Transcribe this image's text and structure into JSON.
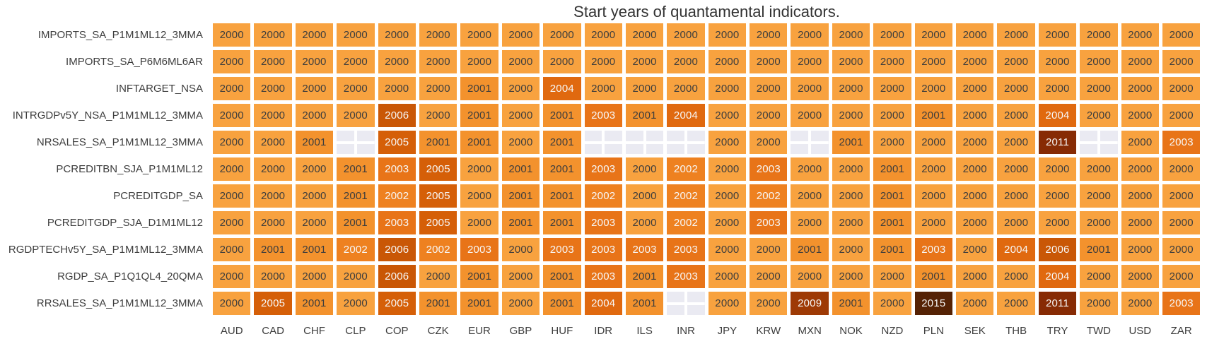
{
  "title": "Start years of quantamental indicators.",
  "chart_data": {
    "type": "heatmap",
    "title": "Start years of quantamental indicators.",
    "legend": "none",
    "grid_gap_color": "#ffffff",
    "missing_color": "#eaeaf2",
    "text_color_dark": "#3d3d3d",
    "text_color_light": "#f7f7f7",
    "text_light_threshold": 2002,
    "value_range": [
      2000,
      2015
    ],
    "colormap": {
      "2000": "#f8a23f",
      "2001": "#f3922d",
      "2002": "#ee8120",
      "2003": "#e87418",
      "2004": "#e0690f",
      "2005": "#d55f08",
      "2006": "#c95706",
      "2009": "#9e3a05",
      "2011": "#872b04",
      "2015": "#552205"
    },
    "columns": [
      "AUD",
      "CAD",
      "CHF",
      "CLP",
      "COP",
      "CZK",
      "EUR",
      "GBP",
      "HUF",
      "IDR",
      "ILS",
      "INR",
      "JPY",
      "KRW",
      "MXN",
      "NOK",
      "NZD",
      "PLN",
      "SEK",
      "THB",
      "TRY",
      "TWD",
      "USD",
      "ZAR"
    ],
    "rows": [
      {
        "label": "IMPORTS_SA_P1M1ML12_3MMA",
        "values": [
          2000,
          2000,
          2000,
          2000,
          2000,
          2000,
          2000,
          2000,
          2000,
          2000,
          2000,
          2000,
          2000,
          2000,
          2000,
          2000,
          2000,
          2000,
          2000,
          2000,
          2000,
          2000,
          2000,
          2000
        ]
      },
      {
        "label": "IMPORTS_SA_P6M6ML6AR",
        "values": [
          2000,
          2000,
          2000,
          2000,
          2000,
          2000,
          2000,
          2000,
          2000,
          2000,
          2000,
          2000,
          2000,
          2000,
          2000,
          2000,
          2000,
          2000,
          2000,
          2000,
          2000,
          2000,
          2000,
          2000
        ]
      },
      {
        "label": "INFTARGET_NSA",
        "values": [
          2000,
          2000,
          2000,
          2000,
          2000,
          2000,
          2001,
          2000,
          2004,
          2000,
          2000,
          2000,
          2000,
          2000,
          2000,
          2000,
          2000,
          2000,
          2000,
          2000,
          2000,
          2000,
          2000,
          2000
        ]
      },
      {
        "label": "INTRGDPv5Y_NSA_P1M1ML12_3MMA",
        "values": [
          2000,
          2000,
          2000,
          2000,
          2006,
          2000,
          2001,
          2000,
          2001,
          2003,
          2001,
          2004,
          2000,
          2000,
          2000,
          2000,
          2000,
          2001,
          2000,
          2000,
          2004,
          2000,
          2000,
          2000
        ]
      },
      {
        "label": "NRSALES_SA_P1M1ML12_3MMA",
        "values": [
          2000,
          2000,
          2001,
          null,
          2005,
          2001,
          2001,
          2000,
          2001,
          null,
          null,
          null,
          2000,
          2000,
          null,
          2001,
          2000,
          2000,
          2000,
          2000,
          2011,
          null,
          2000,
          2003
        ]
      },
      {
        "label": "PCREDITBN_SJA_P1M1ML12",
        "values": [
          2000,
          2000,
          2000,
          2001,
          2003,
          2005,
          2000,
          2001,
          2001,
          2003,
          2000,
          2002,
          2000,
          2003,
          2000,
          2000,
          2001,
          2000,
          2000,
          2000,
          2000,
          2000,
          2000,
          2000
        ]
      },
      {
        "label": "PCREDITGDP_SA",
        "values": [
          2000,
          2000,
          2000,
          2001,
          2002,
          2005,
          2000,
          2001,
          2001,
          2002,
          2000,
          2002,
          2000,
          2002,
          2000,
          2000,
          2001,
          2000,
          2000,
          2000,
          2000,
          2000,
          2000,
          2000
        ]
      },
      {
        "label": "PCREDITGDP_SJA_D1M1ML12",
        "values": [
          2000,
          2000,
          2000,
          2001,
          2003,
          2005,
          2000,
          2001,
          2001,
          2003,
          2000,
          2002,
          2000,
          2003,
          2000,
          2000,
          2001,
          2000,
          2000,
          2000,
          2000,
          2000,
          2000,
          2000
        ]
      },
      {
        "label": "RGDPTECHv5Y_SA_P1M1ML12_3MMA",
        "values": [
          2000,
          2001,
          2001,
          2002,
          2006,
          2002,
          2003,
          2000,
          2003,
          2003,
          2003,
          2003,
          2000,
          2000,
          2001,
          2000,
          2001,
          2003,
          2000,
          2004,
          2006,
          2001,
          2000,
          2000
        ]
      },
      {
        "label": "RGDP_SA_P1Q1QL4_20QMA",
        "values": [
          2000,
          2000,
          2000,
          2000,
          2006,
          2000,
          2001,
          2000,
          2001,
          2003,
          2001,
          2003,
          2000,
          2000,
          2000,
          2000,
          2000,
          2001,
          2000,
          2000,
          2004,
          2000,
          2000,
          2000
        ]
      },
      {
        "label": "RRSALES_SA_P1M1ML12_3MMA",
        "values": [
          2000,
          2005,
          2001,
          2000,
          2005,
          2001,
          2001,
          2000,
          2001,
          2004,
          2001,
          null,
          2000,
          2000,
          2009,
          2001,
          2000,
          2015,
          2000,
          2000,
          2011,
          2000,
          2000,
          2003
        ]
      }
    ]
  }
}
